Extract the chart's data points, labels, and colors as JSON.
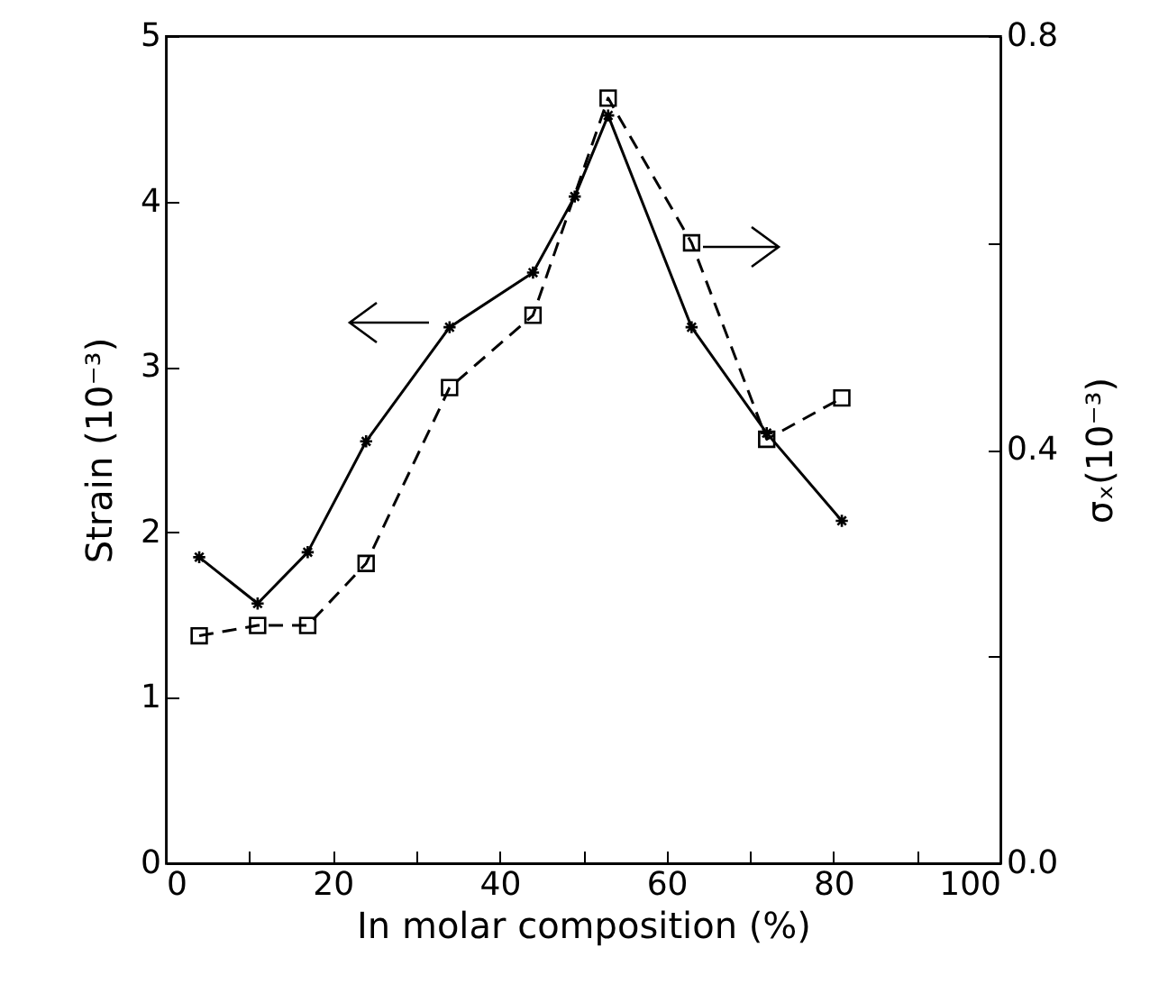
{
  "chart_data": {
    "type": "line",
    "xlabel": "In molar composition (%)",
    "ylabel": "Strain (10⁻³)",
    "y2label": "σₓ(10⁻³)",
    "xlim": [
      0,
      100
    ],
    "xticks": [
      0,
      {
        "value": 10,
        "label": null
      },
      20,
      {
        "value": 30,
        "label": null
      },
      40,
      {
        "value": 50,
        "label": null
      },
      60,
      {
        "value": 70,
        "label": null
      },
      80,
      {
        "value": 90,
        "label": null
      },
      100
    ],
    "ylim": [
      0,
      5
    ],
    "yticks": [
      0,
      1,
      2,
      3,
      4,
      5
    ],
    "y2lim": [
      0,
      0.8
    ],
    "y2ticks": [
      {
        "value": 0,
        "label": "0.0"
      },
      {
        "value": 0.2,
        "label": null
      },
      0.4,
      {
        "value": 0.6,
        "label": null
      },
      0.8
    ],
    "series": [
      {
        "color": "#000000",
        "marker": "cross",
        "line_style": "solid",
        "x": [
          4,
          11,
          17,
          24,
          34,
          44,
          49,
          53,
          63,
          72,
          81
        ],
        "values": [
          1.85,
          1.57,
          1.88,
          2.55,
          3.24,
          3.57,
          4.03,
          4.52,
          3.24,
          2.6,
          2.07
        ]
      },
      {
        "color": "#000000",
        "marker": "square",
        "line_style": "dashed",
        "axis": "y2",
        "x": [
          4,
          11,
          17,
          24,
          34,
          44,
          53,
          63,
          72,
          81
        ],
        "values": [
          0.22,
          0.23,
          0.23,
          0.29,
          0.46,
          0.53,
          0.74,
          0.6,
          0.41,
          0.45
        ]
      }
    ]
  }
}
